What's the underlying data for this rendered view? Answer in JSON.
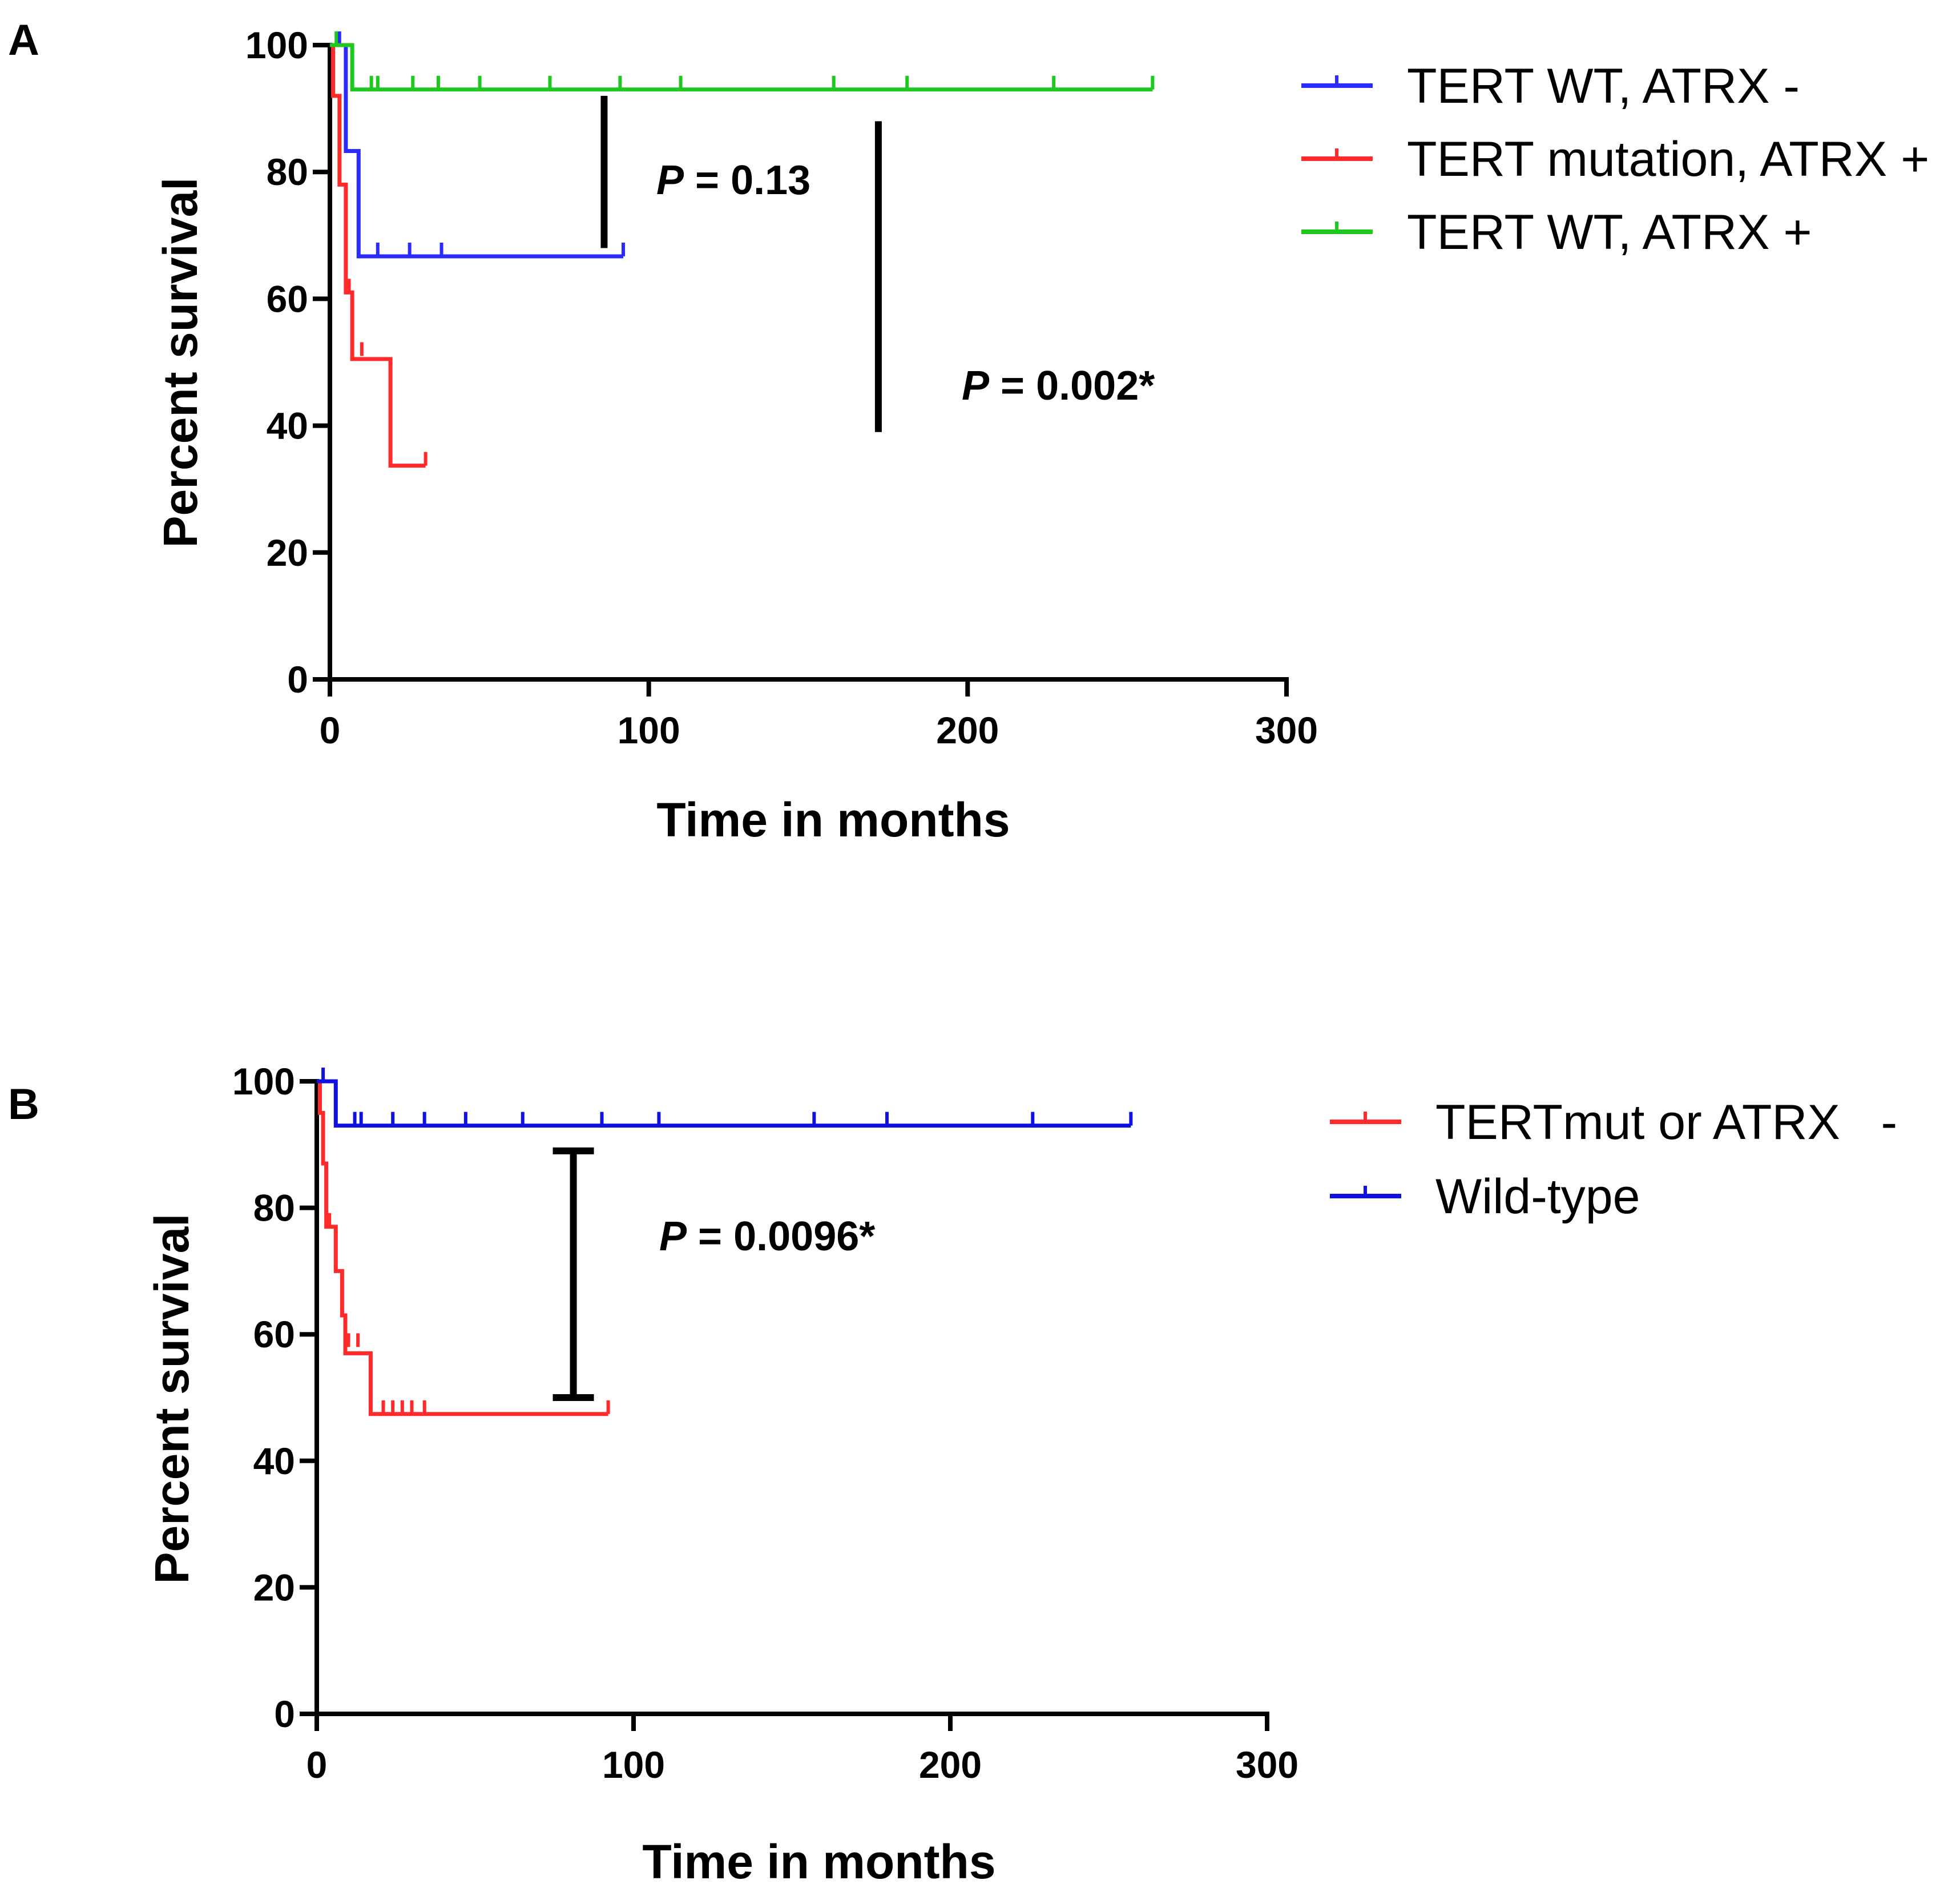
{
  "chart_data": [
    {
      "type": "line",
      "subtype": "kaplan-meier",
      "panel_label": "A",
      "xlabel": "Time in months",
      "ylabel": "Percent survival",
      "xlim": [
        0,
        300
      ],
      "ylim": [
        0,
        100
      ],
      "xticks": [
        0,
        100,
        200,
        300
      ],
      "yticks": [
        0,
        20,
        40,
        60,
        80,
        100
      ],
      "legend_position": "top-right",
      "series": [
        {
          "name": "TERT WT, ATRX -",
          "color": "#2b2bff",
          "steps": [
            [
              0,
              100
            ],
            [
              5,
              100
            ],
            [
              5,
              83.3
            ],
            [
              9,
              83.3
            ],
            [
              9,
              66.7
            ],
            [
              92,
              66.7
            ]
          ],
          "censored": [
            [
              3,
              100
            ],
            [
              15,
              66.7
            ],
            [
              25,
              66.7
            ],
            [
              35,
              66.7
            ],
            [
              92,
              66.7
            ]
          ]
        },
        {
          "name": "TERT mutation, ATRX +",
          "color": "#ff2b2b",
          "steps": [
            [
              0,
              100
            ],
            [
              1,
              100
            ],
            [
              1,
              92
            ],
            [
              3,
              92
            ],
            [
              3,
              78
            ],
            [
              5,
              78
            ],
            [
              5,
              61
            ],
            [
              7,
              61
            ],
            [
              7,
              50.5
            ],
            [
              19,
              50.5
            ],
            [
              19,
              33.7
            ],
            [
              30,
              33.7
            ]
          ],
          "censored": [
            [
              6,
              61
            ],
            [
              10,
              51
            ],
            [
              30,
              33.7
            ]
          ]
        },
        {
          "name": "TERT WT, ATRX +",
          "color": "#1ec81e",
          "steps": [
            [
              0,
              100
            ],
            [
              7,
              100
            ],
            [
              7,
              93
            ],
            [
              258,
              93
            ]
          ],
          "censored": [
            [
              2,
              100
            ],
            [
              13,
              93
            ],
            [
              15,
              93
            ],
            [
              26,
              93
            ],
            [
              34,
              93
            ],
            [
              47,
              93
            ],
            [
              69,
              93
            ],
            [
              91,
              93
            ],
            [
              110,
              93
            ],
            [
              158,
              93
            ],
            [
              181,
              93
            ],
            [
              227,
              93
            ],
            [
              258,
              93
            ]
          ]
        }
      ],
      "annotations": [
        {
          "label_italic": "P",
          "label_rest": " = 0.13",
          "x": 86,
          "y_from": 68,
          "y_to": 92
        },
        {
          "label_italic": "P",
          "label_rest": " = 0.002*",
          "x": 172,
          "y_from": 39,
          "y_to": 88
        }
      ]
    },
    {
      "type": "line",
      "subtype": "kaplan-meier",
      "panel_label": "B",
      "xlabel": "Time in months",
      "ylabel": "Percent survival",
      "xlim": [
        0,
        300
      ],
      "ylim": [
        0,
        100
      ],
      "xticks": [
        0,
        100,
        200,
        300
      ],
      "yticks": [
        0,
        20,
        40,
        60,
        80,
        100
      ],
      "legend_position": "top-right",
      "series": [
        {
          "name": "TERTmut or ATRX   -",
          "color": "#ff2b2b",
          "steps": [
            [
              0,
              100
            ],
            [
              1,
              100
            ],
            [
              1,
              95
            ],
            [
              2,
              95
            ],
            [
              2,
              87
            ],
            [
              3,
              87
            ],
            [
              3,
              77
            ],
            [
              6,
              77
            ],
            [
              6,
              70
            ],
            [
              8,
              70
            ],
            [
              8,
              63
            ],
            [
              9,
              63
            ],
            [
              9,
              57
            ],
            [
              17,
              57
            ],
            [
              17,
              47.4
            ],
            [
              92,
              47.4
            ]
          ],
          "censored": [
            [
              4,
              77
            ],
            [
              10,
              58
            ],
            [
              13,
              58
            ],
            [
              21,
              47.4
            ],
            [
              24,
              47.4
            ],
            [
              27,
              47.4
            ],
            [
              30,
              47.4
            ],
            [
              34,
              47.4
            ],
            [
              92,
              47.4
            ]
          ]
        },
        {
          "name": "Wild-type",
          "color": "#1010e0",
          "steps": [
            [
              0,
              100
            ],
            [
              6,
              100
            ],
            [
              6,
              93
            ],
            [
              257,
              93
            ]
          ],
          "censored": [
            [
              2,
              100
            ],
            [
              12,
              93
            ],
            [
              14,
              93
            ],
            [
              24,
              93
            ],
            [
              34,
              93
            ],
            [
              47,
              93
            ],
            [
              65,
              93
            ],
            [
              90,
              93
            ],
            [
              108,
              93
            ],
            [
              157,
              93
            ],
            [
              180,
              93
            ],
            [
              226,
              93
            ],
            [
              257,
              93
            ]
          ]
        }
      ],
      "annotations": [
        {
          "label_italic": "P",
          "label_rest": " = 0.0096*",
          "x": 81,
          "y_from": 50,
          "y_to": 89,
          "capped": true
        }
      ]
    }
  ]
}
